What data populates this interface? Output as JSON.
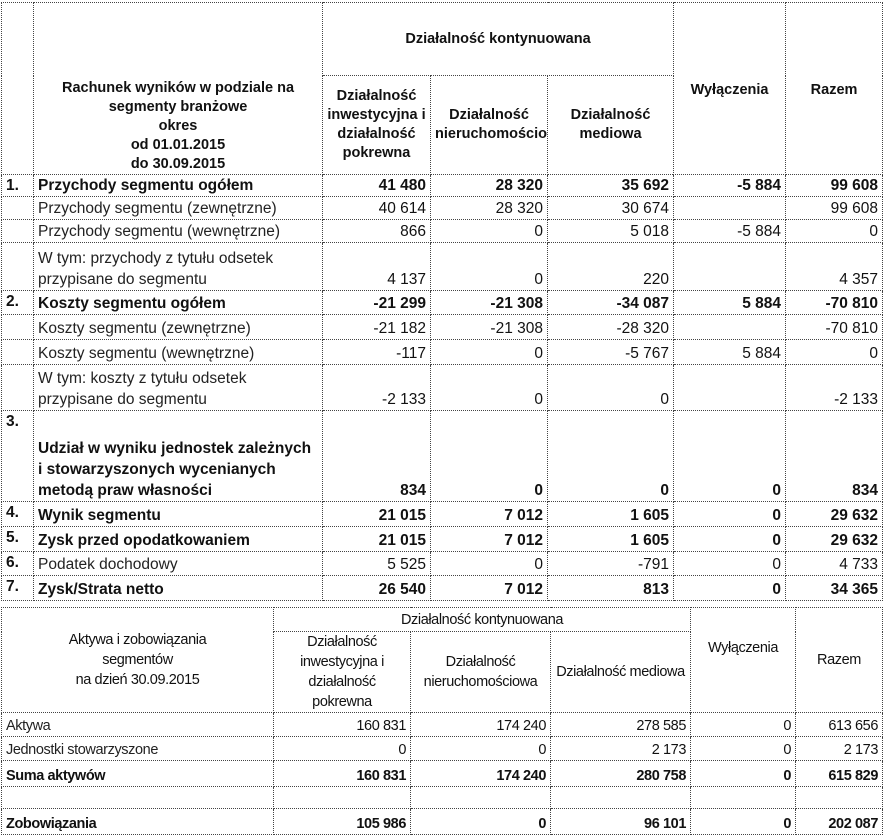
{
  "income": {
    "title_lines": [
      "Rachunek wyników w podziale na",
      "segmenty branżowe",
      "okres",
      "od 01.01.2015",
      "do 30.09.2015"
    ],
    "group_header": "Działalność kontynuowana",
    "columns": [
      "Działalność inwestycyjna i działalność pokrewna",
      "Działalność nieruchomościowa",
      "Działalność mediowa",
      "Wyłączenia",
      "Razem"
    ],
    "rows": [
      {
        "no": "1.",
        "label": "Przychody segmentu ogółem",
        "bold": true,
        "values": [
          "41 480",
          "28 320",
          "35 692",
          "-5 884",
          "99 608"
        ]
      },
      {
        "no": "",
        "label": "Przychody segmentu (zewnętrzne)",
        "bold": false,
        "values": [
          "40 614",
          "28 320",
          "30 674",
          "",
          "99 608"
        ]
      },
      {
        "no": "",
        "label": "Przychody segmentu (wewnętrzne)",
        "bold": false,
        "values": [
          "866",
          "0",
          "5 018",
          "-5 884",
          "0"
        ]
      },
      {
        "no": "",
        "label": "W tym: przychody z tytułu odsetek przypisane do segmentu",
        "bold": false,
        "values": [
          "4 137",
          "0",
          "220",
          "",
          "4 357"
        ]
      },
      {
        "no": "2.",
        "label": "Koszty segmentu ogółem",
        "bold": true,
        "values": [
          "-21 299",
          "-21 308",
          "-34 087",
          "5 884",
          "-70 810"
        ]
      },
      {
        "no": "",
        "label": "Koszty segmentu (zewnętrzne)",
        "bold": false,
        "values": [
          "-21 182",
          "-21 308",
          "-28 320",
          "",
          "-70 810"
        ]
      },
      {
        "no": "",
        "label": "Koszty segmentu (wewnętrzne)",
        "bold": false,
        "values": [
          "-117",
          "0",
          "-5 767",
          "5 884",
          "0"
        ]
      },
      {
        "no": "",
        "label": "W tym: koszty z tytułu odsetek przypisane do segmentu",
        "bold": false,
        "values": [
          "-2 133",
          "0",
          "0",
          "",
          "-2 133"
        ]
      },
      {
        "no": "3.",
        "label": "Udział w wyniku jednostek zależnych i stowarzyszonych wycenianych metodą praw własności",
        "bold": true,
        "values": [
          "834",
          "0",
          "0",
          "0",
          "834"
        ]
      },
      {
        "no": "4.",
        "label": "Wynik segmentu",
        "bold": true,
        "values": [
          "21 015",
          "7 012",
          "1 605",
          "0",
          "29 632"
        ]
      },
      {
        "no": "5.",
        "label": "Zysk przed opodatkowaniem",
        "bold": true,
        "values": [
          "21 015",
          "7 012",
          "1 605",
          "0",
          "29 632"
        ]
      },
      {
        "no": "6.",
        "label": "Podatek dochodowy",
        "bold": false,
        "values": [
          "5 525",
          "0",
          "-791",
          "0",
          "4 733"
        ]
      },
      {
        "no": "7.",
        "label": "Zysk/Strata netto",
        "bold": true,
        "values": [
          "26 540",
          "7 012",
          "813",
          "0",
          "34 365"
        ]
      }
    ]
  },
  "assets": {
    "title_lines": [
      "Aktywa i zobowiązania",
      "segmentów",
      "na dzień 30.09.2015"
    ],
    "group_header": "Działalność kontynuowana",
    "columns": [
      "Działalność inwestycyjna i działalność pokrewna",
      "Działalność nieruchomościowa",
      "Działalność mediowa",
      "Wyłączenia",
      "Razem"
    ],
    "rows": [
      {
        "label": "Aktywa",
        "bold": false,
        "values": [
          "160 831",
          "174 240",
          "278 585",
          "0",
          "613 656"
        ]
      },
      {
        "label": "Jednostki stowarzyszone",
        "bold": false,
        "values": [
          "0",
          "0",
          "2 173",
          "0",
          "2 173"
        ]
      },
      {
        "label": "Suma aktywów",
        "bold": true,
        "values": [
          "160 831",
          "174 240",
          "280 758",
          "0",
          "615 829"
        ]
      },
      {
        "label": "",
        "bold": false,
        "values": [
          "",
          "",
          "",
          "",
          ""
        ]
      },
      {
        "label": "Zobowiązania",
        "bold": true,
        "values": [
          "105 986",
          "0",
          "96 101",
          "0",
          "202 087"
        ]
      }
    ]
  }
}
